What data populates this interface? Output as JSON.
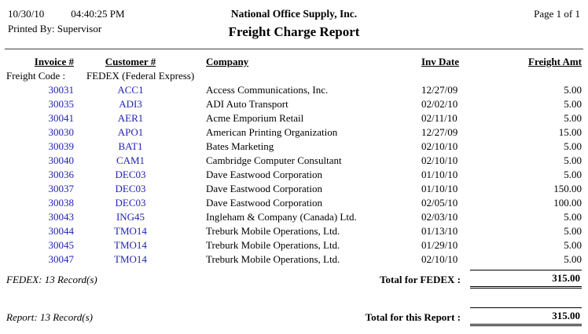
{
  "header": {
    "date": "10/30/10",
    "time": "04:40:25 PM",
    "printed_by": "Printed By: Supervisor",
    "company": "National Office Supply, Inc.",
    "title": "Freight Charge Report",
    "page": "Page 1 of  1"
  },
  "table": {
    "columns": {
      "invoice": "Invoice #",
      "customer": "Customer #",
      "company": "Company",
      "inv_date": "Inv Date",
      "freight_amt": "Freight Amt"
    },
    "group": {
      "label": "Freight Code :",
      "value": "FEDEX (Federal Express)"
    },
    "rows": [
      {
        "invoice": "30031",
        "customer": "ACC1",
        "company": "Access Communications, Inc.",
        "date": "12/27/09",
        "amount": "5.00"
      },
      {
        "invoice": "30035",
        "customer": "ADI3",
        "company": "ADI Auto Transport",
        "date": "02/02/10",
        "amount": "5.00"
      },
      {
        "invoice": "30041",
        "customer": "AER1",
        "company": "Acme Emporium Retail",
        "date": "02/11/10",
        "amount": "5.00"
      },
      {
        "invoice": "30030",
        "customer": "APO1",
        "company": "American Printing Organization",
        "date": "12/27/09",
        "amount": "15.00"
      },
      {
        "invoice": "30039",
        "customer": "BAT1",
        "company": "Bates Marketing",
        "date": "02/10/10",
        "amount": "5.00"
      },
      {
        "invoice": "30040",
        "customer": "CAM1",
        "company": "Cambridge Computer Consultant",
        "date": "02/10/10",
        "amount": "5.00"
      },
      {
        "invoice": "30036",
        "customer": "DEC03",
        "company": "Dave Eastwood Corporation",
        "date": "01/10/10",
        "amount": "5.00"
      },
      {
        "invoice": "30037",
        "customer": "DEC03",
        "company": "Dave Eastwood Corporation",
        "date": "01/10/10",
        "amount": "150.00"
      },
      {
        "invoice": "30038",
        "customer": "DEC03",
        "company": "Dave Eastwood Corporation",
        "date": "02/05/10",
        "amount": "100.00"
      },
      {
        "invoice": "30043",
        "customer": "ING45",
        "company": "Ingleham & Company (Canada) Ltd.",
        "date": "02/03/10",
        "amount": "5.00"
      },
      {
        "invoice": "30044",
        "customer": "TMO14",
        "company": "Treburk Mobile Operations, Ltd.",
        "date": "01/13/10",
        "amount": "5.00"
      },
      {
        "invoice": "30045",
        "customer": "TMO14",
        "company": "Treburk Mobile Operations, Ltd.",
        "date": "01/29/10",
        "amount": "5.00"
      },
      {
        "invoice": "30047",
        "customer": "TMO14",
        "company": "Treburk Mobile Operations, Ltd.",
        "date": "02/10/10",
        "amount": "5.00"
      }
    ]
  },
  "totals": {
    "group": {
      "count": "FEDEX: 13 Record(s)",
      "label": "Total for FEDEX :",
      "amount": "315.00"
    },
    "report": {
      "count": "Report: 13 Record(s)",
      "label": "Total for this Report :",
      "amount": "315.00"
    }
  },
  "colors": {
    "link_blue": "#2222b2"
  }
}
